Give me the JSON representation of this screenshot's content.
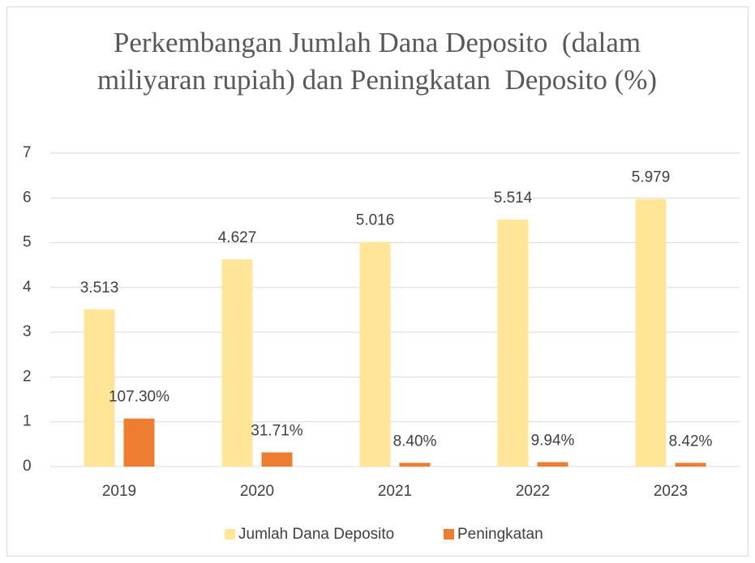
{
  "chart_data": {
    "type": "bar",
    "title": "Perkembangan Jumlah Dana Deposito  (dalam miliyaran rupiah) dan Peningkatan  Deposito (%)",
    "categories": [
      "2019",
      "2020",
      "2021",
      "2022",
      "2023"
    ],
    "series": [
      {
        "name": "Jumlah Dana Deposito",
        "color": "#FFE699",
        "values": [
          3.513,
          4.627,
          5.016,
          5.514,
          5.979
        ],
        "value_labels": [
          "3.513",
          "4.627",
          "5.016",
          "5.514",
          "5.979"
        ]
      },
      {
        "name": "Peningkatan",
        "color": "#ED7D31",
        "values": [
          1.073,
          0.3171,
          0.084,
          0.0994,
          0.0842
        ],
        "value_labels": [
          "107.30%",
          "31.71%",
          "8.40%",
          "9.94%",
          "8.42%"
        ]
      }
    ],
    "ylim": [
      0,
      7
    ],
    "yticks": [
      0,
      1,
      2,
      3,
      4,
      5,
      6,
      7
    ],
    "grid": true,
    "legend": "bottom"
  }
}
